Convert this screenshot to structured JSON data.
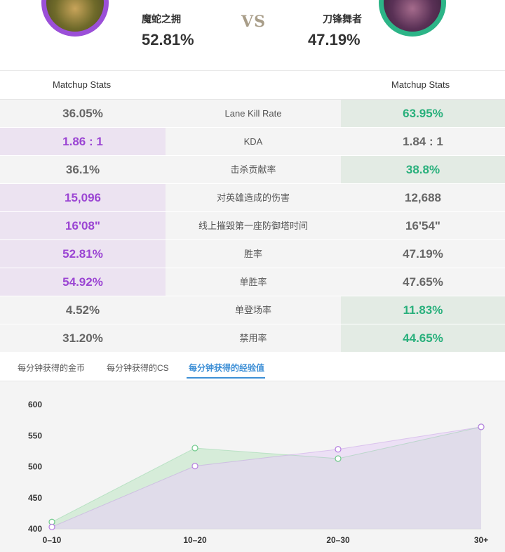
{
  "header": {
    "left_champion": {
      "name": "魔蛇之拥",
      "win_rate": "52.81%",
      "ring_color": "#9b4fd8"
    },
    "vs": "VS",
    "right_champion": {
      "name": "刀锋舞者",
      "win_rate": "47.19%",
      "ring_color": "#2cb487"
    }
  },
  "stats_header": {
    "left": "Matchup Stats",
    "right": "Matchup Stats"
  },
  "stats": [
    {
      "label": "Lane Kill Rate",
      "left": "36.05%",
      "right": "63.95%",
      "winner": "right"
    },
    {
      "label": "KDA",
      "left": "1.86 : 1",
      "right": "1.84 : 1",
      "winner": "left"
    },
    {
      "label": "击杀贡献率",
      "left": "36.1%",
      "right": "38.8%",
      "winner": "right"
    },
    {
      "label": "对英雄造成的伤害",
      "left": "15,096",
      "right": "12,688",
      "winner": "left"
    },
    {
      "label": "线上摧毁第一座防御塔时间",
      "left": "16'08\"",
      "right": "16'54\"",
      "winner": "left"
    },
    {
      "label": "胜率",
      "left": "52.81%",
      "right": "47.19%",
      "winner": "left"
    },
    {
      "label": "单胜率",
      "left": "54.92%",
      "right": "47.65%",
      "winner": "left"
    },
    {
      "label": "单登场率",
      "left": "4.52%",
      "right": "11.83%",
      "winner": "right"
    },
    {
      "label": "禁用率",
      "left": "31.20%",
      "right": "44.65%",
      "winner": "right"
    }
  ],
  "tabs": [
    {
      "label": "每分钟获得的金币",
      "active": false
    },
    {
      "label": "每分钟获得的CS",
      "active": false
    },
    {
      "label": "每分钟获得的经验值",
      "active": true
    }
  ],
  "colors": {
    "accent_blue": "#3d8fd6",
    "purple": "#9b45d3",
    "green": "#29b07c"
  },
  "chart_data": {
    "type": "area",
    "categories": [
      "0–10",
      "10–20",
      "20–30",
      "30+"
    ],
    "y_ticks": [
      "600",
      "550",
      "500",
      "450",
      "400"
    ],
    "ylim": [
      400,
      600
    ],
    "grid": false,
    "series": [
      {
        "values": [
          411,
          530,
          513,
          564
        ],
        "color": "#6ec98a"
      },
      {
        "values": [
          403,
          501,
          528,
          564
        ],
        "color": "#b57ee0"
      }
    ]
  }
}
